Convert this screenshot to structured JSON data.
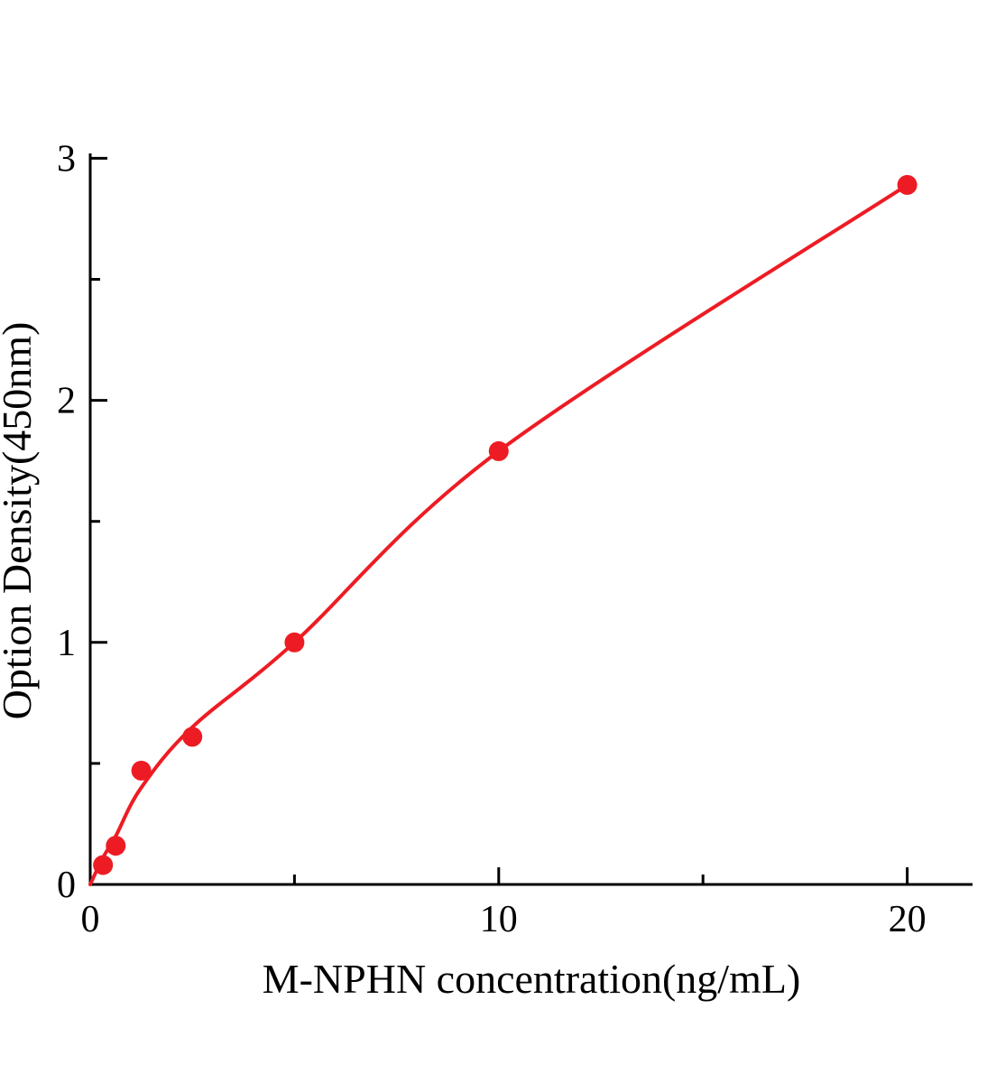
{
  "chart_data": {
    "type": "scatter",
    "title": "",
    "xlabel": "M-NPHN concentration(ng/mL)",
    "ylabel": "Option Density(450nm)",
    "color": "#ed1c24",
    "axis_color": "#000000",
    "x_axis": {
      "min": 0,
      "max": 21.6,
      "major_ticks": [
        0,
        10,
        20
      ],
      "minor_ticks": [
        5,
        15
      ]
    },
    "y_axis": {
      "min": 0,
      "max": 3.02,
      "major_ticks": [
        0,
        1,
        2,
        3
      ],
      "minor_ticks": [
        0.5,
        1.5,
        2.5
      ]
    },
    "points": [
      {
        "x": 0.313,
        "y": 0.08
      },
      {
        "x": 0.625,
        "y": 0.16
      },
      {
        "x": 1.25,
        "y": 0.47
      },
      {
        "x": 2.5,
        "y": 0.61
      },
      {
        "x": 5,
        "y": 1.0
      },
      {
        "x": 10,
        "y": 1.79
      },
      {
        "x": 20,
        "y": 2.89
      }
    ],
    "curve": {
      "description": "smooth fitted standard curve through/near the data points",
      "path_points": [
        [
          0,
          0
        ],
        [
          0.31,
          0.11
        ],
        [
          0.625,
          0.2
        ],
        [
          1.25,
          0.4
        ],
        [
          2.5,
          0.65
        ],
        [
          5,
          1.0
        ],
        [
          10,
          1.79
        ],
        [
          20,
          2.89
        ]
      ]
    },
    "legend": "none",
    "grid": false
  }
}
